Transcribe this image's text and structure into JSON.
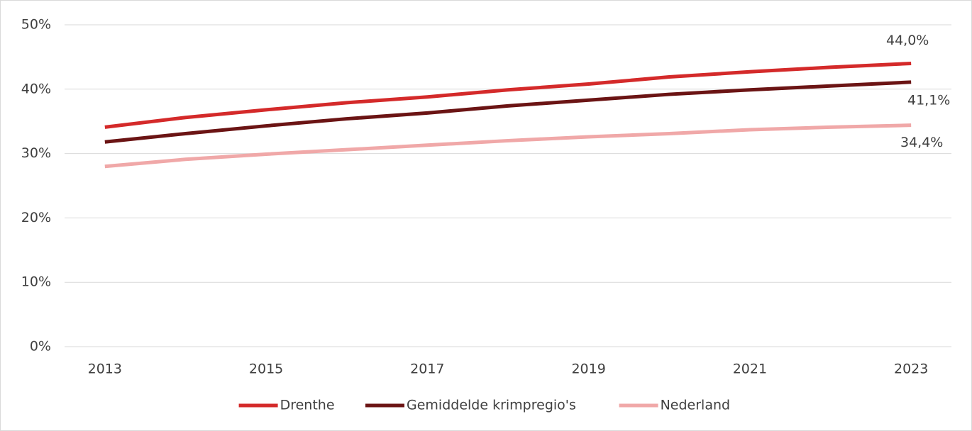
{
  "chart_data": {
    "type": "line",
    "x": [
      2013,
      2014,
      2015,
      2016,
      2017,
      2018,
      2019,
      2020,
      2021,
      2022,
      2023
    ],
    "xlim": [
      2012.5,
      2023.5
    ],
    "xticks": [
      2013,
      2015,
      2017,
      2019,
      2021,
      2023
    ],
    "ylim": [
      0,
      50
    ],
    "yticks": [
      {
        "value": 0,
        "label": "0%"
      },
      {
        "value": 10,
        "label": "10%"
      },
      {
        "value": 20,
        "label": "20%"
      },
      {
        "value": 30,
        "label": "30%"
      },
      {
        "value": 40,
        "label": "40%"
      },
      {
        "value": 50,
        "label": "50%"
      }
    ],
    "grid": true,
    "legend": "bottom",
    "series": [
      {
        "name": "Drenthe",
        "color": "#d42a2a",
        "values": [
          34.1,
          35.6,
          36.8,
          37.9,
          38.8,
          39.9,
          40.8,
          41.9,
          42.7,
          43.4,
          44.0
        ],
        "value_labels": [
          null,
          null,
          null,
          null,
          null,
          null,
          null,
          null,
          null,
          null,
          "44,0%"
        ]
      },
      {
        "name": "Gemiddelde krimpregio's",
        "color": "#6b1414",
        "values": [
          31.8,
          33.1,
          34.3,
          35.4,
          36.3,
          37.4,
          38.3,
          39.2,
          39.9,
          40.5,
          41.1
        ],
        "value_labels": [
          null,
          null,
          null,
          null,
          null,
          null,
          null,
          null,
          null,
          null,
          "41,1%"
        ]
      },
      {
        "name": "Nederland",
        "color": "#f0a8a8",
        "values": [
          28.0,
          29.1,
          29.9,
          30.6,
          31.3,
          32.0,
          32.6,
          33.1,
          33.7,
          34.1,
          34.4
        ],
        "value_labels": [
          null,
          null,
          null,
          null,
          null,
          null,
          null,
          null,
          null,
          null,
          "34,4%"
        ]
      }
    ]
  }
}
